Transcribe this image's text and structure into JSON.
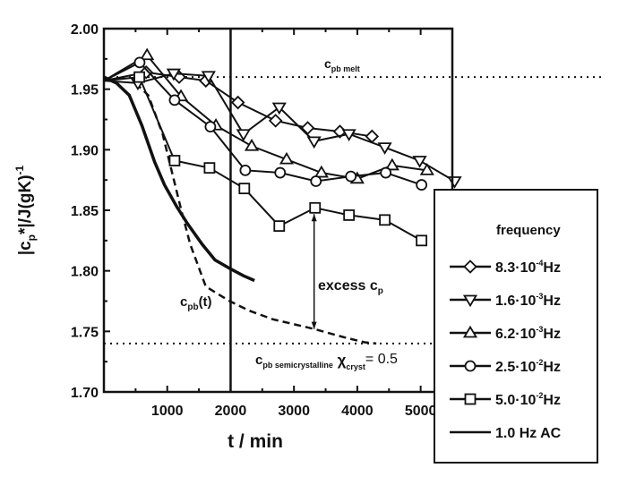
{
  "chart_data": {
    "type": "line",
    "xlabel": "t / min",
    "ylabel": "|c",
    "ylabel_sub": "p",
    "ylabel_rest": "*|/J(gK)",
    "ylabel_sup": "-1",
    "xlim": [
      0,
      5500
    ],
    "ylim": [
      1.7,
      2.0
    ],
    "xticks": [
      1000,
      2000,
      3000,
      4000,
      5000
    ],
    "xtick_labels": [
      "1000",
      "2000",
      "3000",
      "4000",
      "5000"
    ],
    "yticks": [
      1.7,
      1.75,
      1.8,
      1.85,
      1.9,
      1.95,
      2.0
    ],
    "ytick_labels": [
      "1.70",
      "1.75",
      "1.80",
      "1.85",
      "1.90",
      "1.95",
      "2.00"
    ],
    "legend": {
      "title": "frequency",
      "placement": "right"
    },
    "series": [
      {
        "name": "8.3·10⁻⁴Hz",
        "label_main": "8.3·10",
        "label_exp": "-4",
        "label_unit": "Hz",
        "marker": "diamond",
        "x": [
          0,
          667,
          1188,
          1609,
          2116,
          2710,
          3217,
          3725,
          4232
        ],
        "y": [
          1.957,
          1.964,
          1.96,
          1.957,
          1.939,
          1.924,
          1.918,
          1.915,
          1.911
        ]
      },
      {
        "name": "1.6·10⁻³Hz",
        "label_main": "1.6·10",
        "label_exp": "-3",
        "label_unit": "Hz",
        "marker": "triangle-down",
        "x": [
          0,
          536,
          1101,
          1652,
          2203,
          2768,
          3318,
          3869,
          4434,
          4985,
          5536
        ],
        "y": [
          1.957,
          1.955,
          1.963,
          1.961,
          1.913,
          1.935,
          1.907,
          1.913,
          1.902,
          1.891,
          1.874
        ]
      },
      {
        "name": "6.2·10⁻³Hz",
        "label_main": "6.2·10",
        "label_exp": "-3",
        "label_unit": "Hz",
        "marker": "triangle-up",
        "x": [
          0,
          681,
          1217,
          1768,
          2333,
          2884,
          3434,
          3999,
          4550,
          5101
        ],
        "y": [
          1.957,
          1.978,
          1.944,
          1.92,
          1.903,
          1.892,
          1.881,
          1.876,
          1.887,
          1.883
        ]
      },
      {
        "name": "2.5·10⁻²Hz",
        "label_main": "2.5·10",
        "label_exp": "-2",
        "label_unit": "Hz",
        "marker": "circle",
        "x": [
          0,
          565,
          1116,
          1681,
          2232,
          2782,
          3347,
          3898,
          4449,
          5014
        ],
        "y": [
          1.957,
          1.972,
          1.941,
          1.919,
          1.883,
          1.881,
          1.874,
          1.878,
          1.881,
          1.871
        ]
      },
      {
        "name": "5.0·10⁻²Hz",
        "label_main": "5.0·10",
        "label_exp": "-2",
        "label_unit": "Hz",
        "marker": "square",
        "x": [
          0,
          560,
          1116,
          1667,
          2217,
          2768,
          3333,
          3869,
          4434,
          5014
        ],
        "y": [
          1.957,
          1.96,
          1.891,
          1.885,
          1.868,
          1.837,
          1.852,
          1.846,
          1.842,
          1.825
        ]
      },
      {
        "name": "1.0 Hz AC",
        "label_main": "1.0 Hz AC",
        "label_exp": "",
        "label_unit": "",
        "marker": "none",
        "x": [
          0,
          200,
          400,
          600,
          800,
          956,
          1150,
          1319,
          1550,
          1753,
          1985,
          2200,
          2377
        ],
        "y": [
          1.96,
          1.955,
          1.945,
          1.92,
          1.89,
          1.871,
          1.853,
          1.839,
          1.822,
          1.809,
          1.802,
          1.796,
          1.792
        ]
      }
    ],
    "reference_curve": {
      "name": "c_pb(t)",
      "x": [
        500,
        700,
        927,
        1217,
        1362,
        1609,
        1985,
        2300,
        2666,
        3318,
        3800,
        4115,
        4300
      ],
      "y": [
        1.955,
        1.945,
        1.913,
        1.851,
        1.822,
        1.787,
        1.775,
        1.767,
        1.76,
        1.752,
        1.745,
        1.741,
        1.74
      ]
    },
    "reference_lines": {
      "melt": 1.96,
      "semicrystalline": 1.74,
      "vertical_x": 2000
    },
    "excess_arrow": {
      "x": 3318,
      "y_from": 1.852,
      "y_to": 1.752
    },
    "annotations": {
      "melt_c": "c",
      "melt_sub": "pb melt",
      "cpbt_c": "c",
      "cpbt_sub": "pb",
      "cpbt_rest": "(t)",
      "excess_main": "excess c",
      "excess_sub": "p",
      "semi_c": "c",
      "semi_sub": "pb semicrystalline",
      "semi_chi": " χ",
      "semi_chi_sub": "cryst",
      "semi_rest": "= 0.5"
    }
  }
}
